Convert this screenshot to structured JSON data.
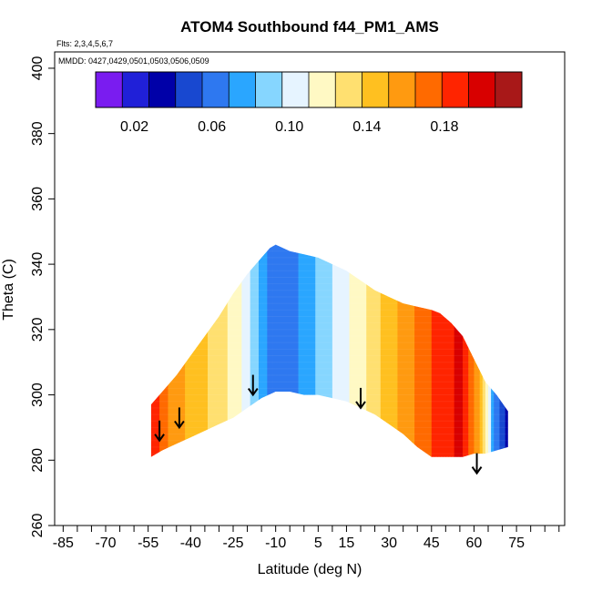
{
  "chart_data": {
    "type": "heatmap",
    "title": "ATOM4 Southbound f44_PM1_AMS",
    "subtitle_flights": "Flts: 2,3,4,5,6,7",
    "subtitle_dates": "MMDD: 0427,0429,0501,0503,0506,0509",
    "xlabel": "Latitude (deg N)",
    "ylabel": "Theta (C)",
    "xlim": [
      -88,
      92
    ],
    "ylim": [
      260,
      405
    ],
    "x_ticks": [
      -85,
      -70,
      -55,
      -40,
      -25,
      -10,
      5,
      15,
      30,
      45,
      60,
      75
    ],
    "x_minor_step": 5,
    "y_ticks": [
      260,
      280,
      300,
      320,
      340,
      360,
      380,
      400
    ],
    "colorbar": {
      "range": [
        0.0,
        0.22
      ],
      "tick_values": [
        0.02,
        0.06,
        0.1,
        0.14,
        0.18
      ],
      "tick_labels": [
        "0.02",
        "0.06",
        "0.10",
        "0.14",
        "0.18"
      ],
      "colors": [
        "#7a1cf0",
        "#2020d8",
        "#0000a8",
        "#1848d0",
        "#2e78f0",
        "#2aa6ff",
        "#86d6ff",
        "#e6f4ff",
        "#fff9c4",
        "#ffe070",
        "#ffc020",
        "#ff9a10",
        "#ff6a00",
        "#ff2400",
        "#d80000",
        "#a81818"
      ]
    },
    "data_region": {
      "top_boundary": [
        [
          -54,
          297
        ],
        [
          -50,
          301
        ],
        [
          -45,
          306
        ],
        [
          -40,
          312
        ],
        [
          -35,
          318
        ],
        [
          -30,
          324
        ],
        [
          -25,
          331
        ],
        [
          -20,
          337
        ],
        [
          -15,
          342
        ],
        [
          -12,
          345
        ],
        [
          -10,
          346
        ],
        [
          -5,
          344
        ],
        [
          0,
          343
        ],
        [
          5,
          342
        ],
        [
          10,
          340
        ],
        [
          15,
          338
        ],
        [
          20,
          335
        ],
        [
          25,
          332
        ],
        [
          30,
          330
        ],
        [
          35,
          328
        ],
        [
          40,
          327
        ],
        [
          45,
          326
        ],
        [
          48,
          325
        ],
        [
          52,
          322
        ],
        [
          56,
          318
        ],
        [
          60,
          311
        ],
        [
          64,
          304
        ],
        [
          68,
          300
        ],
        [
          72,
          295
        ]
      ],
      "bottom_boundary": [
        [
          72,
          284
        ],
        [
          68,
          283
        ],
        [
          64,
          282
        ],
        [
          60,
          282
        ],
        [
          56,
          281
        ],
        [
          52,
          281
        ],
        [
          48,
          281
        ],
        [
          45,
          281
        ],
        [
          40,
          284
        ],
        [
          35,
          288
        ],
        [
          30,
          291
        ],
        [
          25,
          294
        ],
        [
          20,
          296
        ],
        [
          15,
          298
        ],
        [
          10,
          299
        ],
        [
          5,
          300
        ],
        [
          0,
          300
        ],
        [
          -5,
          301
        ],
        [
          -10,
          301
        ],
        [
          -15,
          299
        ],
        [
          -20,
          296
        ],
        [
          -25,
          293
        ],
        [
          -30,
          291
        ],
        [
          -35,
          289
        ],
        [
          -40,
          287
        ],
        [
          -45,
          285
        ],
        [
          -50,
          283
        ],
        [
          -54,
          281
        ]
      ]
    },
    "color_field_by_latitude": [
      [
        -54,
        0.19
      ],
      [
        -48,
        0.165
      ],
      [
        -42,
        0.15
      ],
      [
        -36,
        0.14
      ],
      [
        -30,
        0.13
      ],
      [
        -25,
        0.12
      ],
      [
        -20,
        0.102
      ],
      [
        -15,
        0.08
      ],
      [
        -12,
        0.065
      ],
      [
        -8,
        0.058
      ],
      [
        -4,
        0.064
      ],
      [
        0,
        0.074
      ],
      [
        5,
        0.085
      ],
      [
        10,
        0.096
      ],
      [
        15,
        0.108
      ],
      [
        20,
        0.12
      ],
      [
        25,
        0.132
      ],
      [
        30,
        0.143
      ],
      [
        35,
        0.155
      ],
      [
        40,
        0.168
      ],
      [
        45,
        0.178
      ],
      [
        50,
        0.188
      ],
      [
        55,
        0.196
      ],
      [
        60,
        0.17
      ],
      [
        64,
        0.12
      ],
      [
        68,
        0.06
      ],
      [
        72,
        0.035
      ]
    ],
    "arrow_latitudes": [
      -51,
      -44,
      -18,
      20,
      61
    ],
    "arrow_theta": [
      286,
      290,
      300,
      296,
      276
    ]
  }
}
